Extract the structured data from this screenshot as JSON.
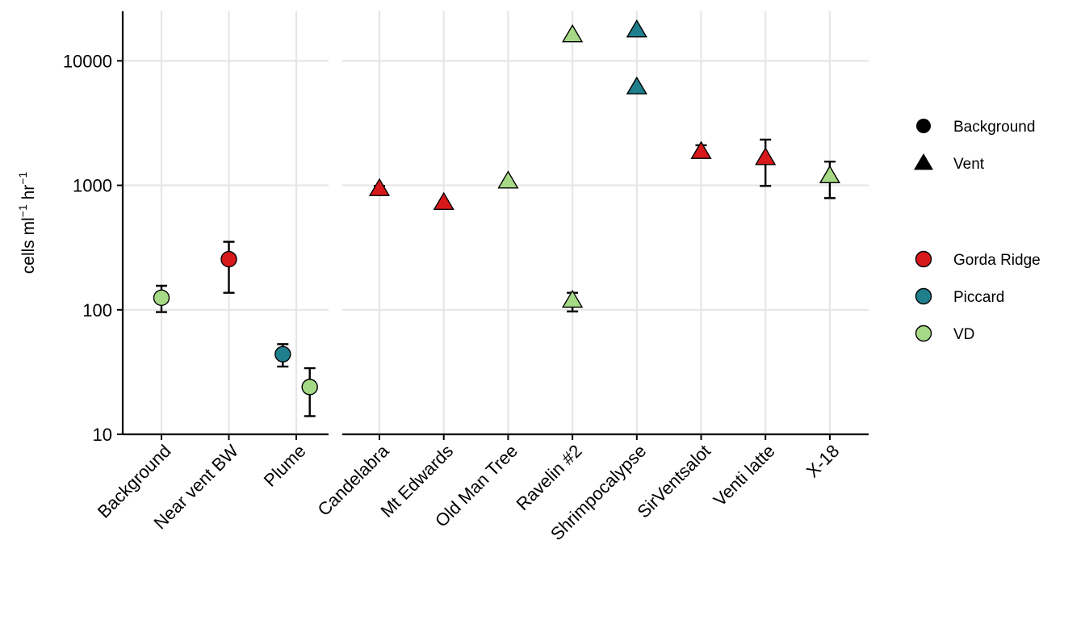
{
  "chart_data": {
    "type": "scatter",
    "ylabel": "cells ml",
    "ylabel_sup1": "−1",
    "ylabel_mid": " hr",
    "ylabel_sup2": "−1",
    "yscale": "log",
    "ylim": [
      10,
      25000
    ],
    "yticks": [
      {
        "value": 10,
        "label": "10"
      },
      {
        "value": 100,
        "label": "100"
      },
      {
        "value": 1000,
        "label": "1000"
      },
      {
        "value": 10000,
        "label": "10000"
      }
    ],
    "grid": true,
    "legend_placement": "right",
    "panels": [
      {
        "categories": [
          "Background",
          "Near vent BW",
          "Plume"
        ],
        "points": [
          {
            "category": "Background",
            "site": "VD",
            "type": "Background",
            "y": 125,
            "ymin": 96,
            "ymax": 156
          },
          {
            "category": "Near vent BW",
            "site": "Gorda Ridge",
            "type": "Background",
            "y": 255,
            "ymin": 137,
            "ymax": 352
          },
          {
            "category": "Plume",
            "site": "Piccard",
            "type": "Background",
            "y": 44,
            "ymin": 35,
            "ymax": 53,
            "offset": -0.2
          },
          {
            "category": "Plume",
            "site": "VD",
            "type": "Background",
            "y": 24,
            "ymin": 14,
            "ymax": 34,
            "offset": 0.2
          }
        ]
      },
      {
        "categories": [
          "Candelabra",
          "Mt Edwards",
          "Old Man Tree",
          "Ravelin #2",
          "Shrimpocalypse",
          "SirVentsalot",
          "Venti latte",
          "X-18"
        ],
        "points": [
          {
            "category": "Candelabra",
            "site": "Gorda Ridge",
            "type": "Vent",
            "y": 930,
            "ymin": 880,
            "ymax": 990
          },
          {
            "category": "Mt Edwards",
            "site": "Gorda Ridge",
            "type": "Vent",
            "y": 720
          },
          {
            "category": "Old Man Tree",
            "site": "VD",
            "type": "Vent",
            "y": 1070
          },
          {
            "category": "Ravelin #2",
            "site": "VD",
            "type": "Vent",
            "y": 16000
          },
          {
            "category": "Ravelin #2",
            "site": "VD",
            "type": "Vent",
            "y": 118,
            "ymin": 97,
            "ymax": 137
          },
          {
            "category": "Shrimpocalypse",
            "site": "Piccard",
            "type": "Vent",
            "y": 17500
          },
          {
            "category": "Shrimpocalypse",
            "site": "Piccard",
            "type": "Vent",
            "y": 6100
          },
          {
            "category": "SirVentsalot",
            "site": "Gorda Ridge",
            "type": "Vent",
            "y": 1850,
            "ymin": 1780,
            "ymax": 2100
          },
          {
            "category": "Venti latte",
            "site": "Gorda Ridge",
            "type": "Vent",
            "y": 1650,
            "ymin": 990,
            "ymax": 2330
          },
          {
            "category": "X-18",
            "site": "VD",
            "type": "Vent",
            "y": 1180,
            "ymin": 790,
            "ymax": 1550
          }
        ]
      }
    ],
    "legend_shape": {
      "entries": [
        {
          "label": "Background",
          "shape": "circle"
        },
        {
          "label": "Vent",
          "shape": "triangle"
        }
      ]
    },
    "legend_site": {
      "entries": [
        {
          "label": "Gorda Ridge",
          "color": "#d7191c"
        },
        {
          "label": "Piccard",
          "color": "#1f7f8c"
        },
        {
          "label": "VD",
          "color": "#a6d985"
        }
      ]
    }
  }
}
